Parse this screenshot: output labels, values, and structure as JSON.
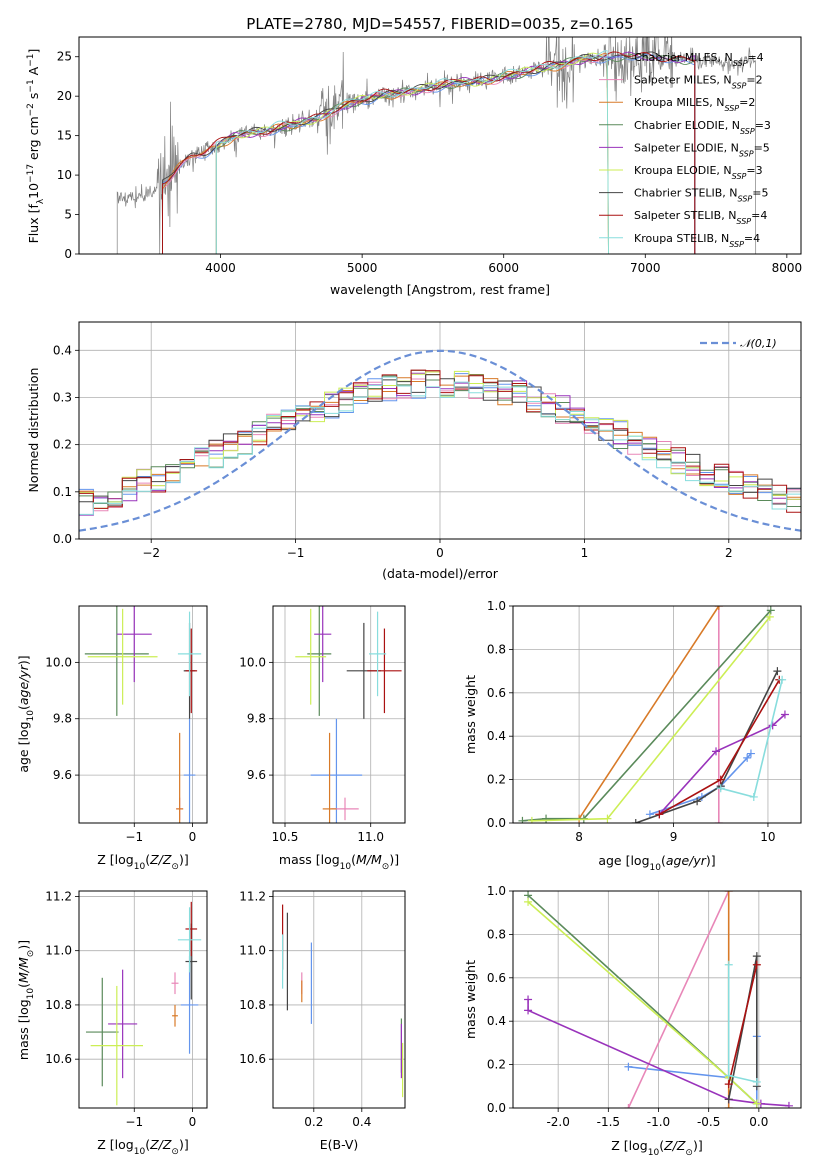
{
  "figure": {
    "title": "PLATE=2780, MJD=54557, FIBERID=0035, z=0.165"
  },
  "models": [
    {
      "name": "Chabrier MILES",
      "nssp": "4",
      "color": "#6495ed"
    },
    {
      "name": "Salpeter MILES",
      "nssp": "2",
      "color": "#e887b8"
    },
    {
      "name": "Kroupa MILES",
      "nssp": "2",
      "color": "#d87a28"
    },
    {
      "name": "Chabrier ELODIE",
      "nssp": "3",
      "color": "#5a8a5a"
    },
    {
      "name": "Salpeter ELODIE",
      "nssp": "5",
      "color": "#9933bb"
    },
    {
      "name": "Kroupa ELODIE",
      "nssp": "3",
      "color": "#ccee55"
    },
    {
      "name": "Chabrier STELIB",
      "nssp": "5",
      "color": "#444444"
    },
    {
      "name": "Salpeter STELIB",
      "nssp": "4",
      "color": "#aa1111"
    },
    {
      "name": "Kroupa STELIB",
      "nssp": "4",
      "color": "#88dddd"
    }
  ],
  "chart_data": [
    {
      "type": "line",
      "id": "spectrum",
      "title": "PLATE=2780, MJD=54557, FIBERID=0035, z=0.165",
      "xlabel": "wavelength [Angstrom, rest frame]",
      "ylabel_parts": [
        "Flux [f",
        "λ",
        "10",
        "−17",
        " erg cm",
        "−2",
        " s",
        "−1",
        " A",
        "−1",
        "]"
      ],
      "xlim": [
        3000,
        8100
      ],
      "ylim": [
        0,
        27.5
      ],
      "xticks": [
        4000,
        5000,
        6000,
        7000,
        8000
      ],
      "yticks": [
        0,
        5,
        10,
        15,
        20,
        25
      ],
      "data_color": "#808080",
      "observed_range": [
        3270,
        7780
      ],
      "continuum": {
        "x": [
          3270,
          3300,
          3400,
          3500,
          3600,
          3700,
          3800,
          3900,
          4000,
          4100,
          4200,
          4300,
          4400,
          4500,
          4600,
          4700,
          4800,
          4900,
          5000,
          5100,
          5200,
          5300,
          5400,
          5500,
          5600,
          5700,
          5800,
          5900,
          6000,
          6100,
          6200,
          6300,
          6400,
          6500,
          6600,
          6700,
          6800,
          6900,
          7000,
          7100,
          7200,
          7300,
          7400,
          7500,
          7600,
          7700,
          7780
        ],
        "y": [
          6.9,
          7.1,
          7.2,
          7.5,
          9.0,
          11.0,
          12.5,
          13.0,
          14.0,
          15.0,
          15.3,
          15.5,
          16.0,
          16.3,
          16.8,
          17.2,
          18.3,
          19.0,
          19.5,
          20.0,
          20.3,
          20.5,
          20.8,
          21.2,
          21.5,
          21.8,
          21.8,
          22.0,
          22.6,
          22.8,
          23.3,
          23.6,
          24.0,
          24.5,
          24.8,
          25.0,
          25.0,
          25.0,
          25.0,
          24.8,
          24.8,
          24.6,
          24.6,
          24.3,
          24.0,
          24.5,
          24.5
        ]
      },
      "model_start": [
        3590,
        3590,
        3590,
        3970,
        3970,
        3970,
        3590,
        3590,
        3970
      ],
      "model_end": [
        7350,
        6740,
        6740,
        7350,
        7350,
        6740,
        7350,
        7350,
        6740
      ]
    },
    {
      "type": "line",
      "id": "residual-distribution",
      "xlabel": "(data-model)/error",
      "ylabel": "Normed distribution",
      "xlim": [
        -2.5,
        2.5
      ],
      "ylim": [
        0,
        0.46
      ],
      "xticks": [
        -2,
        -1,
        0,
        1,
        2
      ],
      "yticks": [
        0.0,
        0.1,
        0.2,
        0.3,
        0.4
      ],
      "reference_curve": {
        "name": "𝒩(0,1)",
        "color": "#6a8fd6",
        "style": "dashed"
      },
      "histogram_bins": 50
    },
    {
      "type": "scatter",
      "id": "age-vs-z",
      "xlabel": "Z [log10(Z/Z⊙)]",
      "ylabel": "age  [log10(age/yr)]",
      "xlim": [
        -1.95,
        0.25
      ],
      "ylim": [
        9.43,
        10.2
      ],
      "xticks": [
        -1,
        0
      ],
      "yticks": [
        9.6,
        9.8,
        10.0
      ],
      "points": [
        {
          "m": 0,
          "x": -0.05,
          "y": 9.6,
          "xe": 0.1,
          "ye": 0.2
        },
        {
          "m": 1,
          "x": -0.22,
          "y": 9.48,
          "xe": 0.06,
          "ye": 0.04
        },
        {
          "m": 2,
          "x": -0.22,
          "y": 9.48,
          "xe": 0.06,
          "ye": 0.27
        },
        {
          "m": 3,
          "x": -1.3,
          "y": 10.03,
          "xe": 0.55,
          "ye": 0.22
        },
        {
          "m": 4,
          "x": -1.0,
          "y": 10.1,
          "xe": 0.3,
          "ye": 0.17
        },
        {
          "m": 5,
          "x": -1.2,
          "y": 10.02,
          "xe": 0.6,
          "ye": 0.17
        },
        {
          "m": 6,
          "x": -0.05,
          "y": 9.97,
          "xe": 0.1,
          "ye": 0.17
        },
        {
          "m": 7,
          "x": -0.02,
          "y": 9.97,
          "xe": 0.1,
          "ye": 0.15
        },
        {
          "m": 8,
          "x": -0.05,
          "y": 10.03,
          "xe": 0.2,
          "ye": 0.15
        }
      ]
    },
    {
      "type": "scatter",
      "id": "age-vs-mass",
      "xlabel": "mass [log10(M/M⊙)]",
      "ylabel": "",
      "xlim": [
        10.43,
        11.2
      ],
      "ylim": [
        9.43,
        10.2
      ],
      "xticks": [
        10.5,
        11.0
      ],
      "yticks": [
        9.6,
        9.8,
        10.0
      ],
      "points": [
        {
          "m": 0,
          "x": 10.8,
          "y": 9.6,
          "xe": 0.15,
          "ye": 0.2
        },
        {
          "m": 1,
          "x": 10.85,
          "y": 9.48,
          "xe": 0.08,
          "ye": 0.04
        },
        {
          "m": 2,
          "x": 10.76,
          "y": 9.48,
          "xe": 0.04,
          "ye": 0.27
        },
        {
          "m": 3,
          "x": 10.7,
          "y": 10.03,
          "xe": 0.07,
          "ye": 0.22
        },
        {
          "m": 4,
          "x": 10.72,
          "y": 10.1,
          "xe": 0.05,
          "ye": 0.17
        },
        {
          "m": 5,
          "x": 10.65,
          "y": 10.02,
          "xe": 0.09,
          "ye": 0.17
        },
        {
          "m": 6,
          "x": 10.96,
          "y": 9.97,
          "xe": 0.1,
          "ye": 0.17
        },
        {
          "m": 7,
          "x": 11.08,
          "y": 9.97,
          "xe": 0.1,
          "ye": 0.15
        },
        {
          "m": 8,
          "x": 11.04,
          "y": 10.03,
          "xe": 0.05,
          "ye": 0.15
        }
      ]
    },
    {
      "type": "line",
      "id": "massweight-vs-age",
      "xlabel": "age  [log10(age/yr)]",
      "ylabel": "mass weight",
      "xlim": [
        7.3,
        10.35
      ],
      "ylim": [
        0,
        1
      ],
      "xticks": [
        8,
        9,
        10
      ],
      "yticks": [
        0.0,
        0.2,
        0.4,
        0.6,
        0.8,
        1.0
      ],
      "series": [
        {
          "m": 0,
          "x": [
            8.75,
            9.3,
            9.5,
            9.78,
            9.82
          ],
          "y": [
            0.04,
            0.12,
            0.17,
            0.3,
            0.32
          ]
        },
        {
          "m": 1,
          "x": [
            9.48,
            9.48
          ],
          "y": [
            0.0,
            1.0
          ]
        },
        {
          "m": 2,
          "x": [
            8.0,
            9.48
          ],
          "y": [
            0.02,
            1.0
          ]
        },
        {
          "m": 3,
          "x": [
            7.4,
            7.65,
            8.05,
            10.03
          ],
          "y": [
            0.01,
            0.02,
            0.02,
            0.98
          ]
        },
        {
          "m": 4,
          "x": [
            8.85,
            9.45,
            10.05,
            10.18
          ],
          "y": [
            0.04,
            0.33,
            0.45,
            0.5
          ]
        },
        {
          "m": 5,
          "x": [
            7.5,
            8.3,
            10.02
          ],
          "y": [
            0.01,
            0.02,
            0.95
          ]
        },
        {
          "m": 6,
          "x": [
            8.6,
            9.25,
            9.5,
            10.1
          ],
          "y": [
            0.0,
            0.1,
            0.17,
            0.7
          ]
        },
        {
          "m": 7,
          "x": [
            8.85,
            9.5,
            10.12
          ],
          "y": [
            0.04,
            0.2,
            0.66
          ]
        },
        {
          "m": 8,
          "x": [
            9.5,
            9.85,
            10.15
          ],
          "y": [
            0.16,
            0.12,
            0.66
          ]
        }
      ]
    },
    {
      "type": "scatter",
      "id": "mass-vs-z",
      "xlabel": "Z [log10(Z/Z⊙)]",
      "ylabel": "mass [log10(M/M⊙)]",
      "xlim": [
        -1.95,
        0.25
      ],
      "ylim": [
        10.42,
        11.22
      ],
      "xticks": [
        -1,
        0
      ],
      "yticks": [
        10.6,
        10.8,
        11.0,
        11.2
      ],
      "points": [
        {
          "m": 0,
          "x": -0.05,
          "y": 10.8,
          "xe": 0.15,
          "ye": 0.18
        },
        {
          "m": 1,
          "x": -0.3,
          "y": 10.88,
          "xe": 0.06,
          "ye": 0.04
        },
        {
          "m": 2,
          "x": -0.3,
          "y": 10.76,
          "xe": 0.05,
          "ye": 0.04
        },
        {
          "m": 3,
          "x": -1.55,
          "y": 10.7,
          "xe": 0.28,
          "ye": 0.2
        },
        {
          "m": 4,
          "x": -1.2,
          "y": 10.73,
          "xe": 0.25,
          "ye": 0.2
        },
        {
          "m": 5,
          "x": -1.3,
          "y": 10.65,
          "xe": 0.45,
          "ye": 0.22
        },
        {
          "m": 6,
          "x": -0.02,
          "y": 10.96,
          "xe": 0.1,
          "ye": 0.14
        },
        {
          "m": 7,
          "x": -0.02,
          "y": 11.08,
          "xe": 0.1,
          "ye": 0.1
        },
        {
          "m": 8,
          "x": -0.05,
          "y": 11.04,
          "xe": 0.2,
          "ye": 0.12
        }
      ]
    },
    {
      "type": "scatter",
      "id": "mass-vs-ebv",
      "xlabel": "E(B-V)",
      "ylabel": "",
      "xlim": [
        0.03,
        0.58
      ],
      "ylim": [
        10.42,
        11.22
      ],
      "xticks": [
        0.2,
        0.4
      ],
      "yticks": [
        10.6,
        10.8,
        11.0,
        11.2
      ],
      "points": [
        {
          "m": 0,
          "x": 0.19,
          "y": 10.88,
          "xe": 0,
          "ye": 0.15
        },
        {
          "m": 1,
          "x": 0.15,
          "y": 10.88,
          "xe": 0,
          "ye": 0.04
        },
        {
          "m": 2,
          "x": 0.15,
          "y": 10.85,
          "xe": 0,
          "ye": 0.04
        },
        {
          "m": 3,
          "x": 0.565,
          "y": 10.65,
          "xe": 0,
          "ye": 0.1
        },
        {
          "m": 4,
          "x": 0.565,
          "y": 10.63,
          "xe": 0,
          "ye": 0.1
        },
        {
          "m": 5,
          "x": 0.57,
          "y": 10.56,
          "xe": 0,
          "ye": 0.1
        },
        {
          "m": 6,
          "x": 0.09,
          "y": 10.96,
          "xe": 0,
          "ye": 0.18
        },
        {
          "m": 7,
          "x": 0.07,
          "y": 11.05,
          "xe": 0,
          "ye": 0.12
        },
        {
          "m": 8,
          "x": 0.07,
          "y": 10.96,
          "xe": 0,
          "ye": 0.1
        }
      ]
    },
    {
      "type": "line",
      "id": "massweight-vs-z",
      "xlabel": "Z [log10(Z/Z⊙)]",
      "ylabel": "mass weight",
      "xlim": [
        -2.45,
        0.42
      ],
      "ylim": [
        0,
        1
      ],
      "xticks": [
        -2.0,
        -1.5,
        -1.0,
        -0.5,
        0.0
      ],
      "yticks": [
        0.0,
        0.2,
        0.4,
        0.6,
        0.8,
        1.0
      ],
      "series": [
        {
          "m": 0,
          "x": [
            -1.3,
            -0.3,
            -0.02,
            -0.02
          ],
          "y": [
            0.19,
            0.14,
            0.02,
            0.33
          ]
        },
        {
          "m": 1,
          "x": [
            -1.3,
            -0.3
          ],
          "y": [
            0.0,
            1.0
          ]
        },
        {
          "m": 2,
          "x": [
            -0.3,
            -0.3
          ],
          "y": [
            0.0,
            1.0
          ]
        },
        {
          "m": 3,
          "x": [
            -2.3,
            -0.3,
            -0.02
          ],
          "y": [
            0.98,
            0.14,
            0.02
          ]
        },
        {
          "m": 4,
          "x": [
            -2.3,
            -2.3,
            -0.3,
            0.02,
            0.3
          ],
          "y": [
            0.5,
            0.45,
            0.04,
            0.02,
            0.01
          ]
        },
        {
          "m": 5,
          "x": [
            -2.3,
            -0.3,
            -0.02
          ],
          "y": [
            0.95,
            0.14,
            0.02
          ]
        },
        {
          "m": 6,
          "x": [
            -0.3,
            -0.02,
            -0.02
          ],
          "y": [
            0.04,
            0.7,
            0.1
          ]
        },
        {
          "m": 7,
          "x": [
            -0.3,
            -0.02
          ],
          "y": [
            0.11,
            0.66
          ]
        },
        {
          "m": 8,
          "x": [
            -0.3,
            -0.3,
            -0.02
          ],
          "y": [
            0.66,
            0.15,
            0.12
          ]
        }
      ]
    }
  ]
}
